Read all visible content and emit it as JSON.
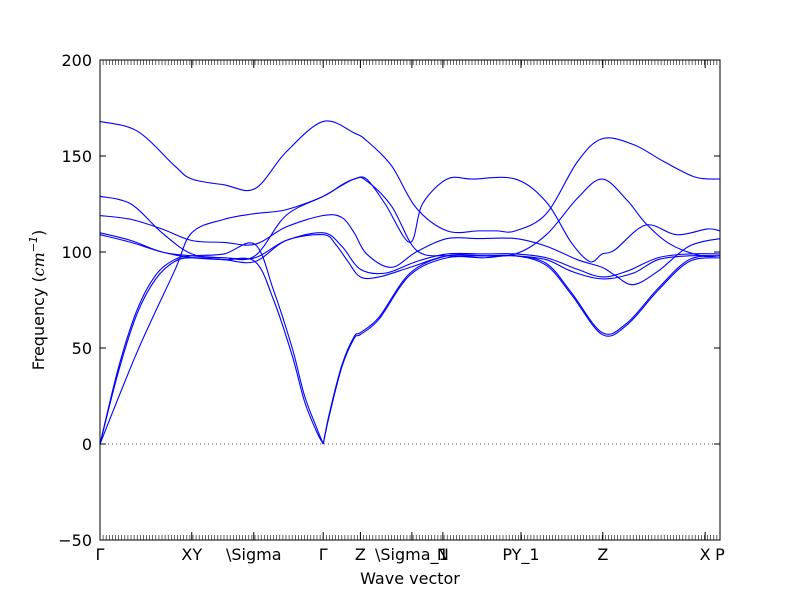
{
  "chart_data": {
    "type": "line",
    "xlabel": "Wave vector",
    "ylabel": "Frequency (",
    "ylabel_unit": "cm",
    "ylabel_exp": "−1",
    "ylabel_close": ")",
    "ylim": [
      -50,
      200
    ],
    "yticks": [
      -50,
      0,
      50,
      100,
      150,
      200
    ],
    "xlim": [
      0,
      100
    ],
    "xticks": [
      {
        "x": 0,
        "label": "Γ"
      },
      {
        "x": 14.8,
        "label": "XY"
      },
      {
        "x": 24.8,
        "label": "\\Sigma"
      },
      {
        "x": 36,
        "label": "Γ"
      },
      {
        "x": 42,
        "label": "Z"
      },
      {
        "x": 50.3,
        "label": "\\Sigma_1"
      },
      {
        "x": 55.3,
        "label": "N"
      },
      {
        "x": 67.9,
        "label": "PY_1"
      },
      {
        "x": 81.1,
        "label": "Z"
      },
      {
        "x": 97.6,
        "label": "X"
      },
      {
        "x": 100,
        "label": "P"
      }
    ],
    "zero_line": {
      "y": 0,
      "style": "dotted"
    },
    "line_color": "#0000ff",
    "series": [
      {
        "x": [
          0,
          6,
          12,
          14.8,
          20,
          25,
          30,
          36,
          41,
          43,
          47,
          51,
          56,
          61,
          64,
          67,
          72,
          77,
          81,
          86,
          91,
          96,
          100
        ],
        "values": [
          168,
          163,
          145,
          138,
          135,
          133,
          152,
          168,
          162,
          158,
          145,
          123,
          111,
          111,
          111,
          111,
          120,
          147,
          159,
          156,
          147,
          139,
          138
        ]
      },
      {
        "x": [
          0,
          5,
          10,
          14.8,
          20,
          25,
          30,
          36,
          41,
          43,
          47,
          51,
          56,
          61,
          67,
          72,
          77,
          81,
          85,
          88,
          92,
          97,
          100
        ],
        "values": [
          129,
          125,
          110,
          99,
          97,
          98,
          119,
          129,
          138,
          137,
          124,
          101,
          98,
          98,
          99,
          109,
          128,
          138,
          127,
          115,
          104,
          98,
          98
        ]
      },
      {
        "x": [
          0,
          6,
          12,
          14.8,
          20,
          25,
          30,
          36,
          39,
          41,
          43,
          46,
          50,
          52,
          56,
          60,
          67,
          72,
          76,
          79,
          81,
          83,
          88,
          93,
          98,
          100
        ],
        "values": [
          0,
          48,
          90,
          110,
          117,
          120,
          122,
          129,
          135,
          138,
          138,
          125,
          105,
          125,
          138,
          138,
          138,
          126,
          105,
          95,
          99,
          101,
          114,
          109,
          112,
          111
        ]
      },
      {
        "x": [
          0,
          5,
          10,
          14.8,
          20,
          25,
          30,
          36,
          39,
          41,
          43,
          47,
          51,
          56,
          61,
          67,
          72,
          77,
          81,
          83,
          86,
          90,
          95,
          100
        ],
        "values": [
          119,
          117,
          112,
          106,
          105,
          104,
          113,
          119,
          118,
          110,
          99,
          92,
          100,
          107,
          107,
          107,
          103,
          96,
          92,
          88,
          83,
          90,
          103,
          107
        ]
      },
      {
        "x": [
          0,
          5,
          10,
          14.8,
          20,
          25,
          30,
          36,
          39,
          42,
          46,
          51,
          56,
          62,
          67,
          72,
          77,
          81,
          85,
          90,
          95,
          100
        ],
        "values": [
          110,
          106,
          100,
          98,
          97,
          97,
          106,
          110,
          103,
          91,
          89,
          95,
          99,
          99,
          99,
          97,
          91,
          87,
          90,
          97,
          99,
          99
        ]
      },
      {
        "x": [
          0,
          5,
          10,
          14.8,
          20,
          25,
          30,
          36,
          38,
          40,
          42,
          45,
          50,
          56,
          62,
          67,
          72,
          76,
          81,
          86,
          90,
          95,
          100
        ],
        "values": [
          109,
          105,
          100,
          97,
          96,
          95,
          106,
          109,
          104,
          95,
          87,
          87,
          92,
          98,
          98,
          98,
          96,
          90,
          86,
          89,
          96,
          98,
          98
        ]
      },
      {
        "x": [
          0,
          3,
          6,
          9,
          12,
          14.8,
          20,
          25,
          28,
          31,
          33,
          35,
          36
        ],
        "values": [
          0,
          40,
          70,
          88,
          96,
          98,
          99,
          104,
          80,
          50,
          25,
          8,
          0
        ]
      },
      {
        "x": [
          0,
          3,
          6,
          9,
          12,
          14.8,
          20,
          25,
          28,
          31,
          33,
          35,
          36
        ],
        "values": [
          0,
          38,
          68,
          86,
          95,
          97,
          96,
          95,
          75,
          46,
          22,
          6,
          0
        ]
      },
      {
        "x": [
          36,
          37,
          39,
          41,
          42,
          45,
          50,
          56,
          62,
          67,
          72,
          76,
          81,
          85,
          90,
          95,
          100
        ],
        "values": [
          0,
          15,
          40,
          55,
          57,
          65,
          88,
          97,
          97,
          98,
          93,
          78,
          57,
          62,
          80,
          95,
          97
        ]
      },
      {
        "x": [
          36,
          37,
          39,
          41,
          42,
          45,
          50,
          56,
          62,
          67,
          72,
          76,
          81,
          85,
          90,
          95,
          100
        ],
        "values": [
          0,
          16,
          41,
          56,
          58,
          66,
          89,
          98,
          98,
          98,
          94,
          79,
          58,
          63,
          81,
          96,
          98
        ]
      }
    ]
  }
}
